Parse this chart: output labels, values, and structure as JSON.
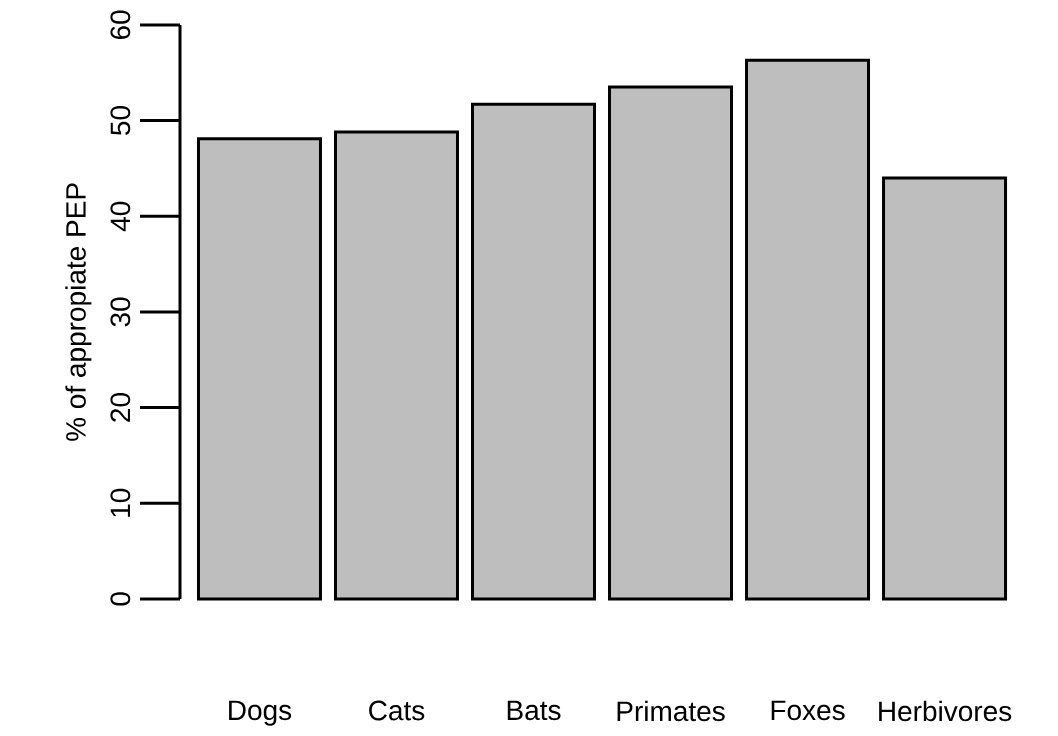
{
  "chart_data": {
    "type": "bar",
    "ylabel": "% of appropiate PEP",
    "categories": [
      "Dogs",
      "Cats",
      "Bats",
      "Primates",
      "Foxes",
      "Herbivores"
    ],
    "values": [
      48.1,
      48.8,
      51.7,
      53.5,
      56.3,
      44.0
    ],
    "color": "#bebebe",
    "ylim": [
      0,
      60
    ],
    "yticks": [
      0,
      10,
      20,
      30,
      40,
      50,
      60
    ],
    "grid": false
  }
}
